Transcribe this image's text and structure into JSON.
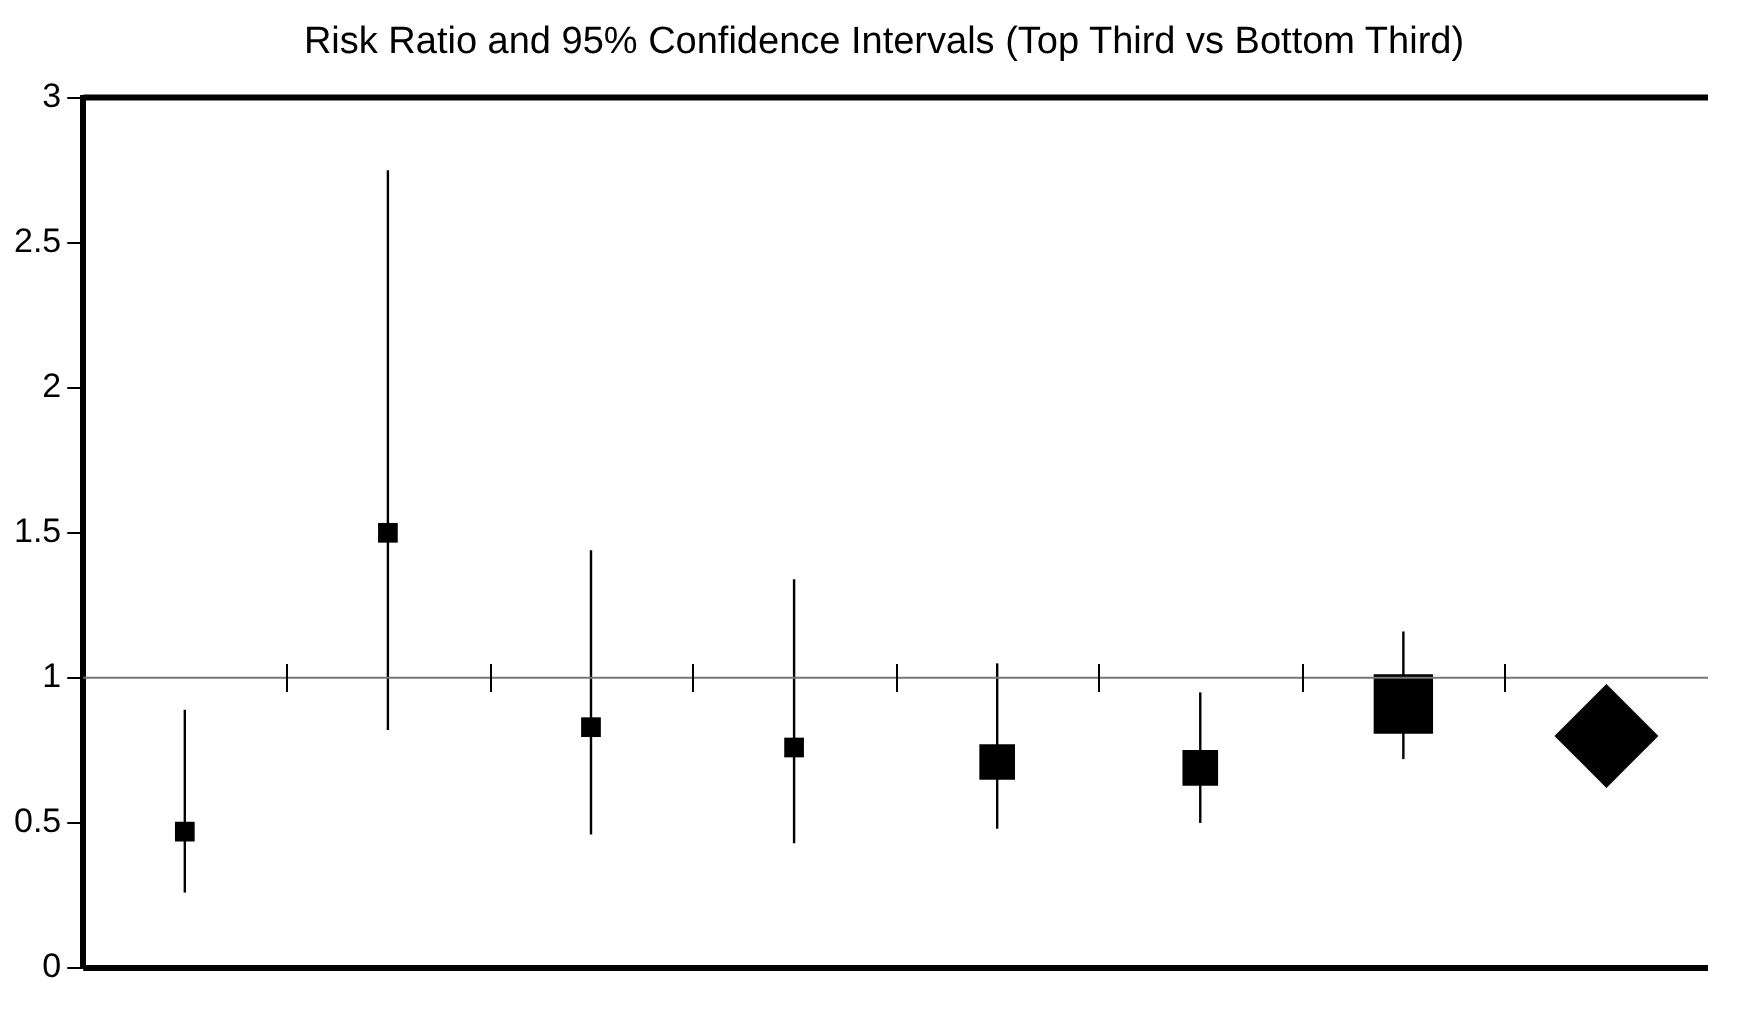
{
  "chart_data": {
    "type": "bubble",
    "title": "Risk Ratio and 95% Confidence Intervals (Top Third vs Bottom Third)",
    "categories": [
      null,
      null,
      null,
      null,
      null,
      null,
      null,
      null
    ],
    "series": [
      {
        "color": "#000000",
        "marker": "square",
        "values": [
          0.47,
          1.5,
          0.83,
          0.76,
          0.71,
          0.69,
          0.91,
          null
        ],
        "sizes": [
          0.11,
          0.11,
          0.11,
          0.11,
          0.36,
          0.36,
          1,
          null
        ],
        "errors": [
          [
            0.26,
            0.89
          ],
          [
            0.82,
            2.75
          ],
          [
            0.46,
            1.44
          ],
          [
            0.43,
            1.34
          ],
          [
            0.48,
            1.05
          ],
          [
            0.5,
            0.95
          ],
          [
            0.72,
            1.16
          ],
          null
        ]
      },
      {
        "type": "scatter",
        "color": "#000000",
        "marker": "diamond",
        "values": [
          null,
          null,
          null,
          null,
          null,
          null,
          null,
          0.8
        ]
      }
    ],
    "ref_lines": [
      {
        "axis": "y",
        "value": 1,
        "color": "#777777"
      }
    ],
    "ylim": [
      0,
      3
    ],
    "yticks": [
      0,
      0.5,
      1,
      1.5,
      2,
      2.5,
      3
    ],
    "grid": false,
    "legend": false
  }
}
